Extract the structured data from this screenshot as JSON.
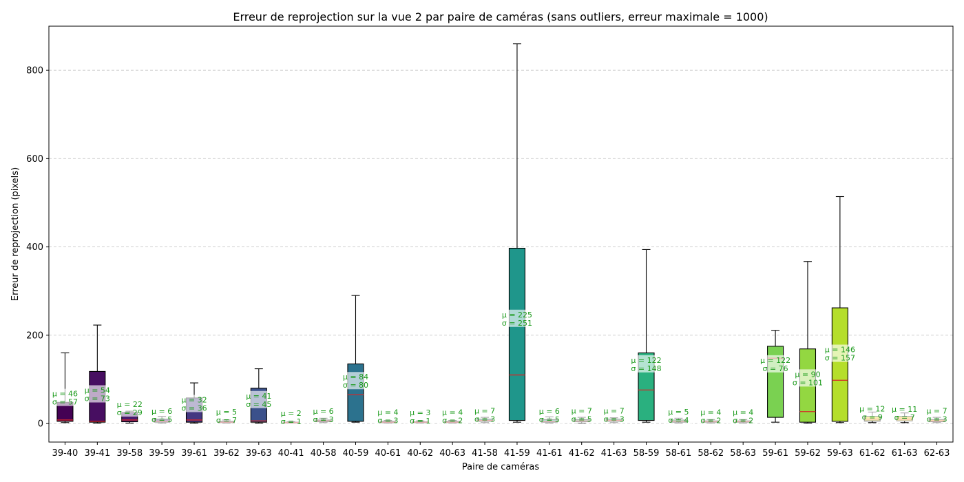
{
  "chart_data": {
    "type": "box",
    "title": "Erreur de reprojection sur la vue 2 par paire de caméras (sans outliers, erreur maximale = 1000)",
    "xlabel": "Paire de caméras",
    "ylabel": "Erreur de reprojection (pixels)",
    "ylim": [
      -42,
      900
    ],
    "yticks": [
      0,
      200,
      400,
      600,
      800
    ],
    "grid": "horizontal-dashed",
    "median_color": "#d62728",
    "stat_label_color": "#1a9a1a",
    "boxes": [
      {
        "label": "39-40",
        "whislo": 2,
        "q1": 5,
        "med": 8,
        "q3": 48,
        "whishi": 160,
        "mean_label": "μ = 46",
        "std_label": "σ = 57",
        "color": "#440154"
      },
      {
        "label": "39-41",
        "whislo": 1,
        "q1": 3,
        "med": 5,
        "q3": 118,
        "whishi": 223,
        "mean_label": "μ = 54",
        "std_label": "σ = 73",
        "color": "#470e61"
      },
      {
        "label": "39-58",
        "whislo": 1,
        "q1": 4,
        "med": 8,
        "q3": 25,
        "whishi": 28,
        "mean_label": "μ = 22",
        "std_label": "σ = 29",
        "color": "#481c6e"
      },
      {
        "label": "39-59",
        "whislo": 1,
        "q1": 3,
        "med": 5,
        "q3": 10,
        "whishi": 16,
        "mean_label": "μ = 6",
        "std_label": "σ = 5",
        "color": "#472878"
      },
      {
        "label": "39-61",
        "whislo": 1,
        "q1": 3,
        "med": 8,
        "q3": 58,
        "whishi": 92,
        "mean_label": "μ = 32",
        "std_label": "σ = 36",
        "color": "#443781"
      },
      {
        "label": "39-62",
        "whislo": 1,
        "q1": 2,
        "med": 3,
        "q3": 5,
        "whishi": 8,
        "mean_label": "μ = 5",
        "std_label": "σ = 7",
        "color": "#404387"
      },
      {
        "label": "39-63",
        "whislo": 1,
        "q1": 3,
        "med": 6,
        "q3": 80,
        "whishi": 124,
        "mean_label": "μ = 41",
        "std_label": "σ = 45",
        "color": "#3b518b"
      },
      {
        "label": "40-41",
        "whislo": 1,
        "q1": 2,
        "med": 2,
        "q3": 3,
        "whishi": 4,
        "mean_label": "μ = 2",
        "std_label": "σ = 1",
        "color": "#355e8d"
      },
      {
        "label": "40-58",
        "whislo": 2,
        "q1": 4,
        "med": 6,
        "q3": 8,
        "whishi": 12,
        "mean_label": "μ = 6",
        "std_label": "σ = 3",
        "color": "#31688e"
      },
      {
        "label": "40-59",
        "whislo": 3,
        "q1": 5,
        "med": 65,
        "q3": 135,
        "whishi": 290,
        "mean_label": "μ = 84",
        "std_label": "σ = 80",
        "color": "#2c728e"
      },
      {
        "label": "40-61",
        "whislo": 1,
        "q1": 2,
        "med": 3,
        "q3": 5,
        "whishi": 7,
        "mean_label": "μ = 4",
        "std_label": "σ = 3",
        "color": "#287d8e"
      },
      {
        "label": "40-62",
        "whislo": 1,
        "q1": 2,
        "med": 3,
        "q3": 4,
        "whishi": 6,
        "mean_label": "μ = 3",
        "std_label": "σ = 1",
        "color": "#24878e"
      },
      {
        "label": "40-63",
        "whislo": 1,
        "q1": 2,
        "med": 3,
        "q3": 5,
        "whishi": 7,
        "mean_label": "μ = 4",
        "std_label": "σ = 2",
        "color": "#21918c"
      },
      {
        "label": "41-58",
        "whislo": 2,
        "q1": 5,
        "med": 7,
        "q3": 10,
        "whishi": 14,
        "mean_label": "μ = 7",
        "std_label": "σ = 3",
        "color": "#1f9a8a"
      },
      {
        "label": "41-59",
        "whislo": 3,
        "q1": 7,
        "med": 110,
        "q3": 397,
        "whishi": 860,
        "mean_label": "μ = 225",
        "std_label": "σ = 251",
        "color": "#1f968b"
      },
      {
        "label": "41-61",
        "whislo": 1,
        "q1": 3,
        "med": 5,
        "q3": 9,
        "whishi": 15,
        "mean_label": "μ = 6",
        "std_label": "σ = 5",
        "color": "#22a884"
      },
      {
        "label": "41-62",
        "whislo": 1,
        "q1": 4,
        "med": 6,
        "q3": 9,
        "whishi": 14,
        "mean_label": "μ = 7",
        "std_label": "σ = 5",
        "color": "#2ab07f"
      },
      {
        "label": "41-63",
        "whislo": 2,
        "q1": 5,
        "med": 7,
        "q3": 10,
        "whishi": 13,
        "mean_label": "μ = 7",
        "std_label": "σ = 3",
        "color": "#35b779"
      },
      {
        "label": "58-59",
        "whislo": 3,
        "q1": 7,
        "med": 76,
        "q3": 160,
        "whishi": 394,
        "mean_label": "μ = 122",
        "std_label": "σ = 148",
        "color": "#2ab07f"
      },
      {
        "label": "58-61",
        "whislo": 1,
        "q1": 3,
        "med": 5,
        "q3": 8,
        "whishi": 12,
        "mean_label": "μ = 5",
        "std_label": "σ = 4",
        "color": "#4ac16d"
      },
      {
        "label": "58-62",
        "whislo": 1,
        "q1": 3,
        "med": 4,
        "q3": 6,
        "whishi": 9,
        "mean_label": "μ = 4",
        "std_label": "σ = 2",
        "color": "#5ec962"
      },
      {
        "label": "58-63",
        "whislo": 1,
        "q1": 3,
        "med": 4,
        "q3": 6,
        "whishi": 9,
        "mean_label": "μ = 4",
        "std_label": "σ = 2",
        "color": "#6ece58"
      },
      {
        "label": "59-61",
        "whislo": 3,
        "q1": 14,
        "med": 148,
        "q3": 175,
        "whishi": 211,
        "mean_label": "μ = 122",
        "std_label": "σ = 76",
        "color": "#7ad151"
      },
      {
        "label": "59-62",
        "whislo": 1,
        "q1": 3,
        "med": 27,
        "q3": 169,
        "whishi": 367,
        "mean_label": "μ = 90",
        "std_label": "σ = 101",
        "color": "#93d741"
      },
      {
        "label": "59-63",
        "whislo": 2,
        "q1": 5,
        "med": 98,
        "q3": 262,
        "whishi": 514,
        "mean_label": "μ = 146",
        "std_label": "σ = 157",
        "color": "#b5de2b"
      },
      {
        "label": "61-62",
        "whislo": 2,
        "q1": 6,
        "med": 10,
        "q3": 16,
        "whishi": 26,
        "mean_label": "μ = 12",
        "std_label": "σ = 9",
        "color": "#fde725"
      },
      {
        "label": "61-63",
        "whislo": 2,
        "q1": 6,
        "med": 10,
        "q3": 16,
        "whishi": 24,
        "mean_label": "μ = 11",
        "std_label": "σ = 7",
        "color": "#fbd724"
      },
      {
        "label": "62-63",
        "whislo": 2,
        "q1": 4,
        "med": 6,
        "q3": 9,
        "whishi": 14,
        "mean_label": "μ = 7",
        "std_label": "σ = 3",
        "color": "#fdc827"
      }
    ]
  }
}
